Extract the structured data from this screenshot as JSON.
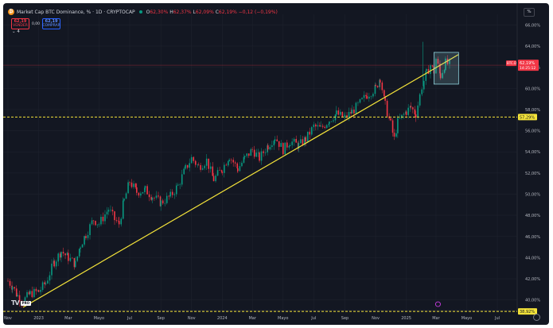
{
  "header": {
    "title": "Market Cap BTC Dominance, % · 1D · CRYPTOCAP",
    "ohlc": [
      {
        "k": "O",
        "v": "62,30%"
      },
      {
        "k": "H",
        "v": "62,37%"
      },
      {
        "k": "L",
        "v": "62,09%"
      },
      {
        "k": "C",
        "v": "62,19%"
      },
      {
        "k": "",
        "v": "−0,12 (−0,19%)"
      }
    ]
  },
  "orders": {
    "sell_price": "62,19",
    "sell_label": "VENDER",
    "spread": "0,00",
    "buy_price": "62,19",
    "buy_label": "COMPRAR"
  },
  "indicators_toggle": "4",
  "scale_button": "%",
  "logo": {
    "pro": "PRO"
  },
  "colors": {
    "background": "#131722",
    "up": "#089981",
    "down": "#f23645",
    "trendline": "#f5e43a",
    "support": "#f5e43a",
    "grid": "#1e222d"
  },
  "chart_data": {
    "type": "candlestick",
    "title": "Market Cap BTC Dominance, % · 1D · CRYPTOCAP",
    "ylabel": "",
    "xlabel": "",
    "ylim": [
      39.0,
      67.0
    ],
    "y_ticks": [
      "66,00%",
      "64,00%",
      "62,00%",
      "60,00%",
      "58,00%",
      "56,00%",
      "54,00%",
      "52,00%",
      "50,00%",
      "48,00%",
      "46,00%",
      "44,00%",
      "42,00%",
      "40,00%"
    ],
    "x_range": [
      "2022-11-01",
      "2025-07-31"
    ],
    "x_ticks": [
      {
        "label": "Nov",
        "date": "2022-11-01"
      },
      {
        "label": "2023",
        "date": "2023-01-01"
      },
      {
        "label": "Mar",
        "date": "2023-03-01"
      },
      {
        "label": "Mayo",
        "date": "2023-05-01"
      },
      {
        "label": "Jul",
        "date": "2023-07-01"
      },
      {
        "label": "Sep",
        "date": "2023-09-01"
      },
      {
        "label": "Nov",
        "date": "2023-11-01"
      },
      {
        "label": "2024",
        "date": "2024-01-01"
      },
      {
        "label": "Mar",
        "date": "2024-03-01"
      },
      {
        "label": "Mayo",
        "date": "2024-05-01"
      },
      {
        "label": "Jul",
        "date": "2024-07-01"
      },
      {
        "label": "Sep",
        "date": "2024-09-01"
      },
      {
        "label": "Nov",
        "date": "2024-11-01"
      },
      {
        "label": "2025",
        "date": "2025-01-01"
      },
      {
        "label": "Mar",
        "date": "2025-03-01"
      },
      {
        "label": "Mayo",
        "date": "2025-05-01"
      },
      {
        "label": "Jul",
        "date": "2025-07-01"
      }
    ],
    "series": [
      {
        "points": [
          [
            "2022-11-01",
            41.8
          ],
          [
            "2022-11-10",
            41.3
          ],
          [
            "2022-11-20",
            40.4
          ],
          [
            "2022-12-01",
            39.9
          ],
          [
            "2022-12-15",
            40.6
          ],
          [
            "2023-01-01",
            40.8
          ],
          [
            "2023-01-15",
            41.6
          ],
          [
            "2023-02-01",
            43.6
          ],
          [
            "2023-02-15",
            44.6
          ],
          [
            "2023-03-01",
            44.0
          ],
          [
            "2023-03-15",
            43.4
          ],
          [
            "2023-03-25",
            45.2
          ],
          [
            "2023-04-05",
            46.2
          ],
          [
            "2023-04-20",
            47.6
          ],
          [
            "2023-05-01",
            47.2
          ],
          [
            "2023-05-20",
            48.6
          ],
          [
            "2023-06-01",
            47.6
          ],
          [
            "2023-06-10",
            47.2
          ],
          [
            "2023-06-20",
            49.4
          ],
          [
            "2023-07-01",
            51.2
          ],
          [
            "2023-07-15",
            50.2
          ],
          [
            "2023-08-01",
            50.4
          ],
          [
            "2023-08-15",
            49.8
          ],
          [
            "2023-09-01",
            49.2
          ],
          [
            "2023-09-20",
            49.8
          ],
          [
            "2023-10-05",
            50.8
          ],
          [
            "2023-10-20",
            52.4
          ],
          [
            "2023-11-01",
            53.4
          ],
          [
            "2023-11-15",
            52.6
          ],
          [
            "2023-12-01",
            53.2
          ],
          [
            "2023-12-15",
            51.4
          ],
          [
            "2024-01-01",
            52.4
          ],
          [
            "2024-01-15",
            53.6
          ],
          [
            "2024-02-01",
            52.4
          ],
          [
            "2024-02-15",
            53.4
          ],
          [
            "2024-03-01",
            54.2
          ],
          [
            "2024-03-15",
            53.4
          ],
          [
            "2024-04-01",
            54.6
          ],
          [
            "2024-04-15",
            55.4
          ],
          [
            "2024-05-01",
            54.2
          ],
          [
            "2024-05-15",
            55.0
          ],
          [
            "2024-06-01",
            54.6
          ],
          [
            "2024-06-15",
            55.2
          ],
          [
            "2024-07-01",
            56.4
          ],
          [
            "2024-07-15",
            56.2
          ],
          [
            "2024-08-01",
            57.0
          ],
          [
            "2024-08-15",
            57.6
          ],
          [
            "2024-09-01",
            57.2
          ],
          [
            "2024-09-15",
            57.8
          ],
          [
            "2024-10-01",
            58.6
          ],
          [
            "2024-10-15",
            59.4
          ],
          [
            "2024-11-01",
            60.0
          ],
          [
            "2024-11-10",
            61.0
          ],
          [
            "2024-11-20",
            58.4
          ],
          [
            "2024-12-01",
            56.6
          ],
          [
            "2024-12-08",
            55.2
          ],
          [
            "2024-12-15",
            56.8
          ],
          [
            "2025-01-01",
            57.8
          ],
          [
            "2025-01-10",
            58.2
          ],
          [
            "2025-01-20",
            57.6
          ],
          [
            "2025-02-01",
            60.2
          ],
          [
            "2025-02-10",
            61.4
          ],
          [
            "2025-02-18",
            62.2
          ],
          [
            "2025-02-25",
            61.6
          ],
          [
            "2025-03-01",
            62.8
          ],
          [
            "2025-03-10",
            61.2
          ],
          [
            "2025-03-20",
            62.4
          ],
          [
            "2025-03-30",
            62.19
          ]
        ]
      }
    ],
    "trendline": {
      "from": [
        "2022-12-01",
        39.3
      ],
      "to": [
        "2025-04-15",
        63.2
      ]
    },
    "horizontal_lines": [
      {
        "value": 57.29,
        "label": "57,29%"
      },
      {
        "value": 38.92,
        "label": "38,92%"
      }
    ],
    "price_marker": {
      "symbol": "BTC.D",
      "value": "62,19%",
      "countdown": "14:25:12",
      "level": 62.19
    },
    "rectangle": {
      "from": [
        "2025-02-25",
        60.4
      ],
      "to": [
        "2025-04-15",
        63.4
      ]
    }
  }
}
